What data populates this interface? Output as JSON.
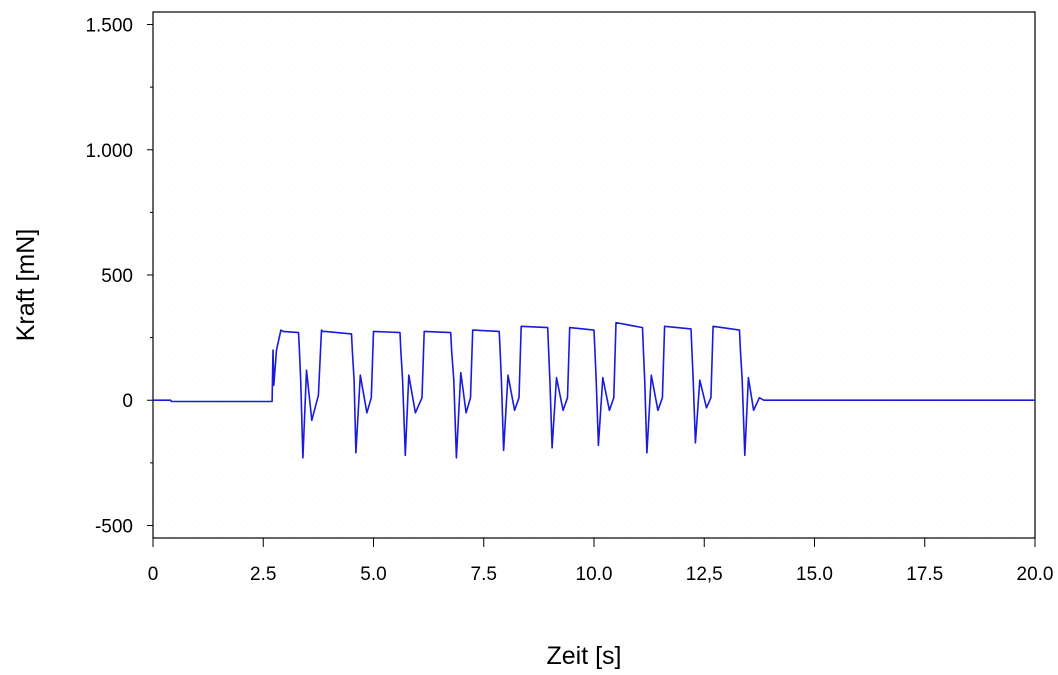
{
  "chart_data": {
    "type": "line",
    "title": "",
    "xlabel": "Zeit [s]",
    "ylabel": "Kraft [mN]",
    "xlim": [
      0,
      20
    ],
    "ylim": [
      -550,
      1550
    ],
    "grid": false,
    "legend": "none",
    "x_ticks": [
      {
        "value": 0,
        "label": "0"
      },
      {
        "value": 2.5,
        "label": "2.5"
      },
      {
        "value": 5,
        "label": "5.0"
      },
      {
        "value": 7.5,
        "label": "7.5"
      },
      {
        "value": 10,
        "label": "10.0"
      },
      {
        "value": 12.5,
        "label": "12,5"
      },
      {
        "value": 15,
        "label": "15.0"
      },
      {
        "value": 17.5,
        "label": "17.5"
      },
      {
        "value": 20,
        "label": "20.0"
      }
    ],
    "y_ticks": [
      {
        "value": 1500,
        "label": "1.500"
      },
      {
        "value": 1000,
        "label": "1.000"
      },
      {
        "value": 500,
        "label": "500"
      },
      {
        "value": 0,
        "label": "0"
      },
      {
        "value": -500,
        "label": "-500"
      }
    ],
    "series": [
      {
        "color": "#1a1adc",
        "x": [
          0,
          0.4,
          0.42,
          2.7,
          2.72,
          2.74,
          2.8,
          2.9,
          2.95,
          3.3,
          3.32,
          3.35,
          3.4,
          3.48,
          3.6,
          3.75,
          3.82,
          3.84,
          3.9,
          4.5,
          4.52,
          4.56,
          4.6,
          4.7,
          4.85,
          4.95,
          5.0,
          5.6,
          5.62,
          5.66,
          5.72,
          5.8,
          5.95,
          6.1,
          6.15,
          6.75,
          6.77,
          6.82,
          6.88,
          6.98,
          7.1,
          7.2,
          7.25,
          7.85,
          7.87,
          7.9,
          7.95,
          8.05,
          8.2,
          8.3,
          8.35,
          8.95,
          8.97,
          9.0,
          9.05,
          9.15,
          9.3,
          9.4,
          9.45,
          10.0,
          10.02,
          10.05,
          10.1,
          10.2,
          10.35,
          10.45,
          10.5,
          11.1,
          11.12,
          11.15,
          11.2,
          11.3,
          11.45,
          11.55,
          11.6,
          12.2,
          12.22,
          12.25,
          12.3,
          12.4,
          12.55,
          12.65,
          12.7,
          13.3,
          13.32,
          13.36,
          13.42,
          13.5,
          13.62,
          13.75,
          13.85,
          14.0,
          20.0
        ],
        "y": [
          0,
          0,
          -5,
          -5,
          200,
          60,
          200,
          280,
          275,
          270,
          200,
          80,
          -230,
          120,
          -80,
          20,
          280,
          275,
          275,
          265,
          200,
          80,
          -210,
          100,
          -50,
          10,
          275,
          270,
          200,
          80,
          -220,
          100,
          -50,
          10,
          275,
          270,
          200,
          80,
          -230,
          110,
          -50,
          10,
          280,
          275,
          200,
          80,
          -200,
          100,
          -40,
          10,
          295,
          290,
          200,
          80,
          -190,
          90,
          -40,
          10,
          290,
          280,
          200,
          80,
          -180,
          90,
          -40,
          10,
          310,
          290,
          200,
          80,
          -210,
          100,
          -40,
          10,
          295,
          285,
          200,
          80,
          -170,
          80,
          -30,
          10,
          295,
          280,
          200,
          80,
          -220,
          90,
          -40,
          10,
          0,
          0,
          0
        ]
      }
    ]
  }
}
